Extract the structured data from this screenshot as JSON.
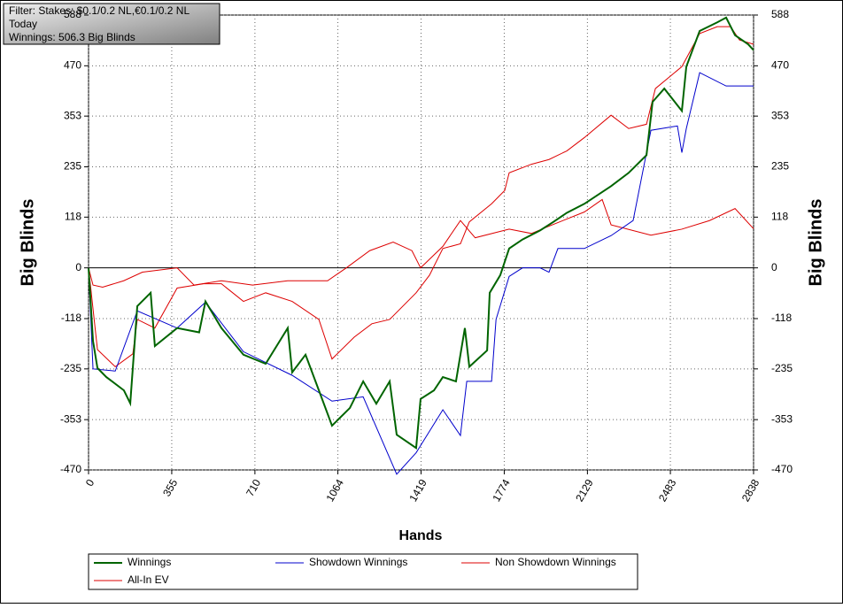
{
  "chart_data": {
    "type": "line",
    "info": [
      "Filter: Stakes: $0.1/0.2 NL,€0.1/0.2 NL",
      "Today",
      "Winnings: 506.3 Big Blinds"
    ],
    "x_label": "Hands",
    "y_label": "Big Blinds",
    "y2_label": "Big Blinds",
    "xlim": [
      0,
      2838
    ],
    "xticks": [
      0,
      355,
      710,
      1064,
      1419,
      1774,
      2129,
      2483,
      2838
    ],
    "ylim": [
      -470,
      588
    ],
    "yticks": [
      -470,
      -353,
      -235,
      -118,
      0,
      118,
      235,
      353,
      470,
      588
    ],
    "grid": true,
    "series": [
      {
        "name": "Winnings",
        "color": "#006400",
        "x": [
          0,
          19,
          38,
          76,
          151,
          178,
          208,
          265,
          283,
          378,
          472,
          499,
          567,
          661,
          756,
          850,
          869,
          926,
          983,
          1039,
          1115,
          1172,
          1228,
          1285,
          1315,
          1398,
          1417,
          1474,
          1512,
          1568,
          1606,
          1625,
          1701,
          1712,
          1757,
          1795,
          1852,
          1927,
          1984,
          2041,
          2116,
          2230,
          2305,
          2381,
          2407,
          2457,
          2532,
          2551,
          2608,
          2683,
          2721,
          2759,
          2815,
          2838
        ],
        "values": [
          0,
          -170,
          -233,
          -254,
          -285,
          -315,
          -89,
          -58,
          -182,
          -140,
          -150,
          -78,
          -140,
          -202,
          -223,
          -140,
          -243,
          -202,
          -285,
          -367,
          -326,
          -264,
          -316,
          -264,
          -388,
          -419,
          -305,
          -285,
          -254,
          -264,
          -140,
          -230,
          -192,
          -58,
          -17,
          45,
          66,
          87,
          107,
          128,
          149,
          190,
          221,
          262,
          386,
          417,
          365,
          468,
          551,
          571,
          582,
          541,
          520,
          506.3
        ]
      },
      {
        "name": "Showdown Winnings",
        "color": "#0000cc",
        "x": [
          0,
          19,
          114,
          208,
          378,
          499,
          661,
          869,
          1039,
          1172,
          1315,
          1398,
          1512,
          1587,
          1614,
          1720,
          1739,
          1795,
          1852,
          1927,
          1965,
          2003,
          2116,
          2230,
          2324,
          2400,
          2513,
          2532,
          2551,
          2608,
          2721,
          2838
        ],
        "values": [
          0,
          -235,
          -240,
          -100,
          -140,
          -80,
          -195,
          -250,
          -310,
          -300,
          -480,
          -430,
          -330,
          -390,
          -264,
          -264,
          -120,
          -20,
          0,
          0,
          -10,
          45,
          45,
          75,
          110,
          320,
          330,
          268,
          324,
          454,
          423,
          423
        ]
      },
      {
        "name": "Non Showdown Winnings",
        "color": "#dd0000",
        "x": [
          0,
          19,
          60,
          150,
          230,
          378,
          450,
          567,
          700,
          850,
          1020,
          1100,
          1200,
          1300,
          1380,
          1417,
          1512,
          1587,
          1650,
          1795,
          1890,
          1965,
          2116,
          2192,
          2230,
          2400,
          2532,
          2650,
          2759,
          2838
        ],
        "values": [
          0,
          -40,
          -45,
          -30,
          -10,
          0,
          -40,
          -30,
          -40,
          -30,
          -30,
          0,
          40,
          60,
          40,
          0,
          50,
          110,
          70,
          90,
          80,
          97,
          130,
          159,
          100,
          76,
          90,
          110,
          138,
          91
        ]
      },
      {
        "name": "All-In EV",
        "color": "#dd0000",
        "x": [
          0,
          38,
          114,
          189,
          208,
          283,
          378,
          491,
          567,
          661,
          756,
          869,
          983,
          1039,
          1134,
          1209,
          1285,
          1398,
          1455,
          1512,
          1587,
          1625,
          1720,
          1776,
          1795,
          1890,
          1965,
          2041,
          2116,
          2230,
          2305,
          2381,
          2419,
          2532,
          2608,
          2683,
          2740,
          2778,
          2838
        ],
        "values": [
          0,
          -190,
          -230,
          -200,
          -120,
          -140,
          -47,
          -37,
          -37,
          -78,
          -58,
          -78,
          -120,
          -212,
          -161,
          -130,
          -120,
          -58,
          -17,
          45,
          56,
          107,
          149,
          180,
          221,
          241,
          252,
          272,
          303,
          355,
          324,
          334,
          417,
          468,
          545,
          561,
          561,
          530,
          520
        ]
      }
    ]
  }
}
